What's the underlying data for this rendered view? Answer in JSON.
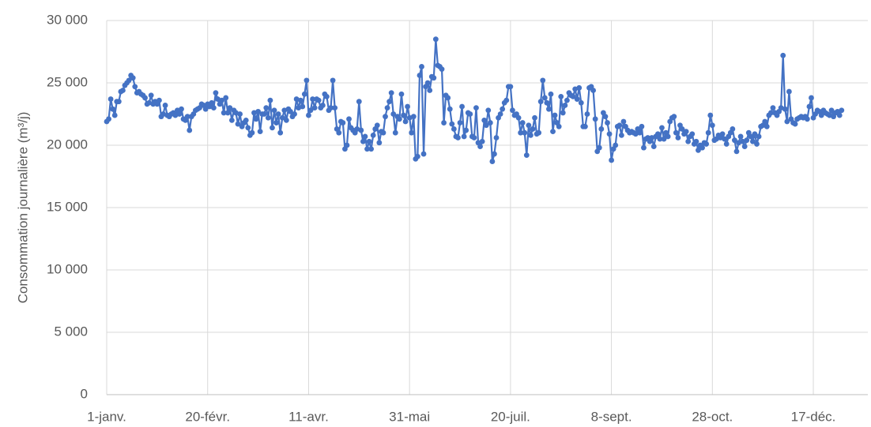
{
  "chart_data": {
    "type": "line",
    "y_label": "Consommation journalière (m³/j)",
    "series": [
      {
        "color": "#4472c4",
        "values": [
          21900,
          22100,
          23700,
          22900,
          22400,
          23500,
          23500,
          24300,
          24400,
          24800,
          25000,
          25200,
          25600,
          25400,
          24700,
          24200,
          24300,
          24100,
          24000,
          23800,
          23300,
          23400,
          24000,
          23300,
          23500,
          23300,
          23600,
          22300,
          22500,
          23200,
          22400,
          22300,
          22500,
          22600,
          22400,
          22800,
          22500,
          22900,
          22100,
          22000,
          22300,
          21200,
          22300,
          22500,
          22800,
          22900,
          23000,
          23300,
          23200,
          22900,
          23300,
          23100,
          23400,
          23000,
          24200,
          23700,
          23300,
          23600,
          22600,
          23800,
          22600,
          23000,
          22000,
          22800,
          22600,
          21700,
          22500,
          21500,
          21800,
          22000,
          21400,
          20800,
          21000,
          22600,
          22100,
          22700,
          21100,
          22500,
          22500,
          23000,
          22200,
          23600,
          21400,
          22800,
          21800,
          22500,
          21000,
          22200,
          22800,
          22000,
          22900,
          22700,
          22300,
          22500,
          23700,
          23000,
          23600,
          23100,
          24100,
          25200,
          22400,
          22800,
          23700,
          23000,
          23700,
          23600,
          23000,
          23200,
          24100,
          23900,
          22800,
          23000,
          25200,
          23000,
          21300,
          21000,
          21900,
          21800,
          19700,
          20000,
          22100,
          21400,
          21200,
          21000,
          21300,
          23500,
          21200,
          20300,
          20700,
          19700,
          20300,
          19700,
          20800,
          21300,
          21600,
          20200,
          21100,
          21000,
          22300,
          23000,
          23500,
          24200,
          22500,
          21000,
          22300,
          22100,
          24100,
          22400,
          21900,
          23100,
          22200,
          21000,
          22300,
          18900,
          19100,
          25600,
          26300,
          19300,
          24700,
          25000,
          24400,
          25500,
          25400,
          28500,
          26400,
          26300,
          26100,
          21800,
          24000,
          23800,
          22900,
          21700,
          21300,
          20700,
          20600,
          21800,
          23100,
          20700,
          21200,
          22600,
          22500,
          20700,
          20600,
          23000,
          20200,
          19900,
          20300,
          22000,
          21600,
          22800,
          21800,
          18700,
          19300,
          20600,
          22200,
          22500,
          22900,
          23400,
          23600,
          24700,
          24700,
          22800,
          22400,
          22500,
          22200,
          21000,
          21800,
          21000,
          19200,
          21600,
          20800,
          21300,
          22200,
          20900,
          21000,
          23500,
          25200,
          23800,
          23400,
          22900,
          24100,
          21100,
          22400,
          21800,
          21500,
          23900,
          22600,
          23200,
          23600,
          24200,
          24000,
          23900,
          24500,
          23700,
          24600,
          23400,
          21500,
          21500,
          22500,
          24600,
          24700,
          24400,
          22100,
          19500,
          19800,
          21300,
          22600,
          22300,
          21800,
          20900,
          18800,
          19700,
          20000,
          21500,
          21600,
          20800,
          21900,
          21500,
          21200,
          21000,
          21100,
          21000,
          20900,
          21300,
          21000,
          21500,
          19800,
          20500,
          20600,
          20300,
          20600,
          19900,
          20700,
          20900,
          20500,
          21400,
          20500,
          21000,
          20700,
          21900,
          22200,
          22300,
          21000,
          20600,
          21600,
          21300,
          20900,
          21100,
          20300,
          20700,
          20900,
          20100,
          20300,
          19600,
          20000,
          19800,
          20200,
          20100,
          21000,
          22400,
          21600,
          20400,
          20500,
          20800,
          20600,
          20900,
          20500,
          20100,
          20700,
          21000,
          21300,
          20400,
          19500,
          20200,
          20700,
          20300,
          19900,
          20400,
          21000,
          20700,
          20300,
          20900,
          20100,
          20700,
          21500,
          21600,
          21900,
          21500,
          22400,
          22600,
          23000,
          22600,
          22400,
          22700,
          23000,
          27200,
          22900,
          21900,
          24300,
          22100,
          21800,
          21700,
          22100,
          22200,
          22300,
          22200,
          22300,
          22100,
          23100,
          23800,
          22200,
          22500,
          22800,
          22700,
          22400,
          22800,
          22600,
          22500,
          22400,
          22800,
          22300,
          22600,
          22700,
          22400,
          22800
        ]
      }
    ],
    "x": [
      0,
      1,
      2,
      3,
      4,
      5,
      6,
      7,
      8,
      9,
      10,
      11,
      12,
      13,
      14,
      15,
      16,
      17,
      18,
      19,
      20,
      21,
      22,
      23,
      24,
      25,
      26,
      27,
      28,
      29,
      30,
      31,
      32,
      33,
      34,
      35,
      36,
      37,
      38,
      39,
      40,
      41,
      42,
      43,
      44,
      45,
      46,
      47,
      48,
      49,
      50,
      51,
      52,
      53,
      54,
      55,
      56,
      57,
      58,
      59,
      60,
      61,
      62,
      63,
      64,
      65,
      66,
      67,
      68,
      69,
      70,
      71,
      72,
      73,
      74,
      75,
      76,
      77,
      78,
      79,
      80,
      81,
      82,
      83,
      84,
      85,
      86,
      87,
      88,
      89,
      90,
      91,
      92,
      93,
      94,
      95,
      96,
      97,
      98,
      99,
      100,
      101,
      102,
      103,
      104,
      105,
      106,
      107,
      108,
      109,
      110,
      111,
      112,
      113,
      114,
      115,
      116,
      117,
      118,
      119,
      120,
      121,
      122,
      123,
      124,
      125,
      126,
      127,
      128,
      129,
      130,
      131,
      132,
      133,
      134,
      135,
      136,
      137,
      138,
      139,
      140,
      141,
      142,
      143,
      144,
      145,
      146,
      147,
      148,
      149,
      150,
      151,
      152,
      153,
      154,
      155,
      156,
      157,
      158,
      159,
      160,
      161,
      162,
      163,
      164,
      165,
      166,
      167,
      168,
      169,
      170,
      171,
      172,
      173,
      174,
      175,
      176,
      177,
      178,
      179,
      180,
      181,
      182,
      183,
      184,
      185,
      186,
      187,
      188,
      189,
      190,
      191,
      192,
      193,
      194,
      195,
      196,
      197,
      198,
      199,
      200,
      201,
      202,
      203,
      204,
      205,
      206,
      207,
      208,
      209,
      210,
      211,
      212,
      213,
      214,
      215,
      216,
      217,
      218,
      219,
      220,
      221,
      222,
      223,
      224,
      225,
      226,
      227,
      228,
      229,
      230,
      231,
      232,
      233,
      234,
      235,
      236,
      237,
      238,
      239,
      240,
      241,
      242,
      243,
      244,
      245,
      246,
      247,
      248,
      249,
      250,
      251,
      252,
      253,
      254,
      255,
      256,
      257,
      258,
      259,
      260,
      261,
      262,
      263,
      264,
      265,
      266,
      267,
      268,
      269,
      270,
      271,
      272,
      273,
      274,
      275,
      276,
      277,
      278,
      279,
      280,
      281,
      282,
      283,
      284,
      285,
      286,
      287,
      288,
      289,
      290,
      291,
      292,
      293,
      294,
      295,
      296,
      297,
      298,
      299,
      300,
      301,
      302,
      303,
      304,
      305,
      306,
      307,
      308,
      309,
      310,
      311,
      312,
      313,
      314,
      315,
      316,
      317,
      318,
      319,
      320,
      321,
      322,
      323,
      324,
      325,
      326,
      327,
      328,
      329,
      330,
      331,
      332,
      333,
      334,
      335,
      336,
      337,
      338,
      339,
      340,
      341,
      342,
      343,
      344,
      345,
      346,
      347,
      348,
      349,
      350,
      351,
      352,
      353,
      354,
      355,
      356,
      357,
      358,
      359,
      360,
      361,
      362,
      363,
      364
    ],
    "xlim": [
      0,
      377
    ],
    "xticks": [
      {
        "value": 0,
        "label": "1-janv."
      },
      {
        "value": 50,
        "label": "20-févr."
      },
      {
        "value": 100,
        "label": "11-avr."
      },
      {
        "value": 150,
        "label": "31-mai"
      },
      {
        "value": 200,
        "label": "20-juil."
      },
      {
        "value": 250,
        "label": "8-sept."
      },
      {
        "value": 300,
        "label": "28-oct."
      },
      {
        "value": 350,
        "label": "17-déc."
      }
    ],
    "ylim": [
      0,
      30000
    ],
    "yticks": [
      0,
      {
        "value": 5000,
        "label": "5 000"
      },
      {
        "value": 10000,
        "label": "10 000"
      },
      {
        "value": 15000,
        "label": "15 000"
      },
      {
        "value": 20000,
        "label": "20 000"
      },
      {
        "value": 25000,
        "label": "25 000"
      },
      {
        "value": 30000,
        "label": "30 000"
      }
    ],
    "grid": true,
    "markers": true
  }
}
